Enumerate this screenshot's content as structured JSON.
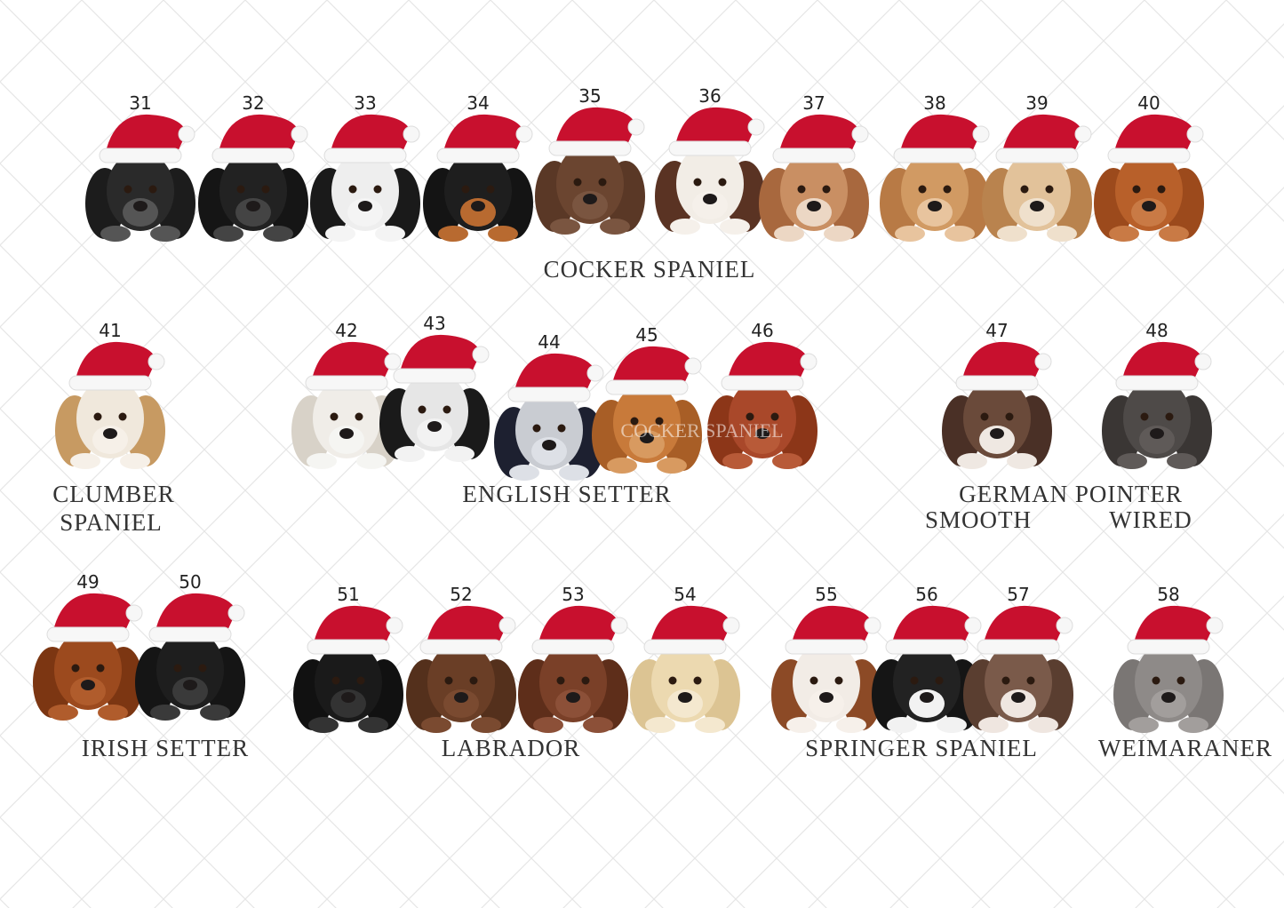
{
  "groups": [
    {
      "label_lines": [
        "COCKER SPANIEL"
      ],
      "dogs": [
        "31",
        "32",
        "33",
        "34",
        "35",
        "36",
        "37",
        "38",
        "39",
        "40"
      ]
    },
    {
      "label_lines": [
        "CLUMBER",
        "SPANIEL"
      ],
      "dogs": [
        "41"
      ]
    },
    {
      "label_lines": [
        "ENGLISH SETTER"
      ],
      "dogs": [
        "42",
        "43",
        "44",
        "45",
        "46"
      ],
      "watermark": "COCKER SPANIEL"
    },
    {
      "label_lines": [
        "GERMAN POINTER"
      ],
      "sub_labels": [
        "SMOOTH",
        "WIRED"
      ],
      "dogs": [
        "47",
        "48"
      ]
    },
    {
      "label_lines": [
        "IRISH SETTER"
      ],
      "dogs": [
        "49",
        "50"
      ]
    },
    {
      "label_lines": [
        "LABRADOR"
      ],
      "dogs": [
        "51",
        "52",
        "53",
        "54"
      ]
    },
    {
      "label_lines": [
        "SPRINGER SPANIEL"
      ],
      "dogs": [
        "55",
        "56",
        "57"
      ]
    },
    {
      "label_lines": [
        "WEIMARANER"
      ],
      "dogs": [
        "58"
      ]
    }
  ]
}
